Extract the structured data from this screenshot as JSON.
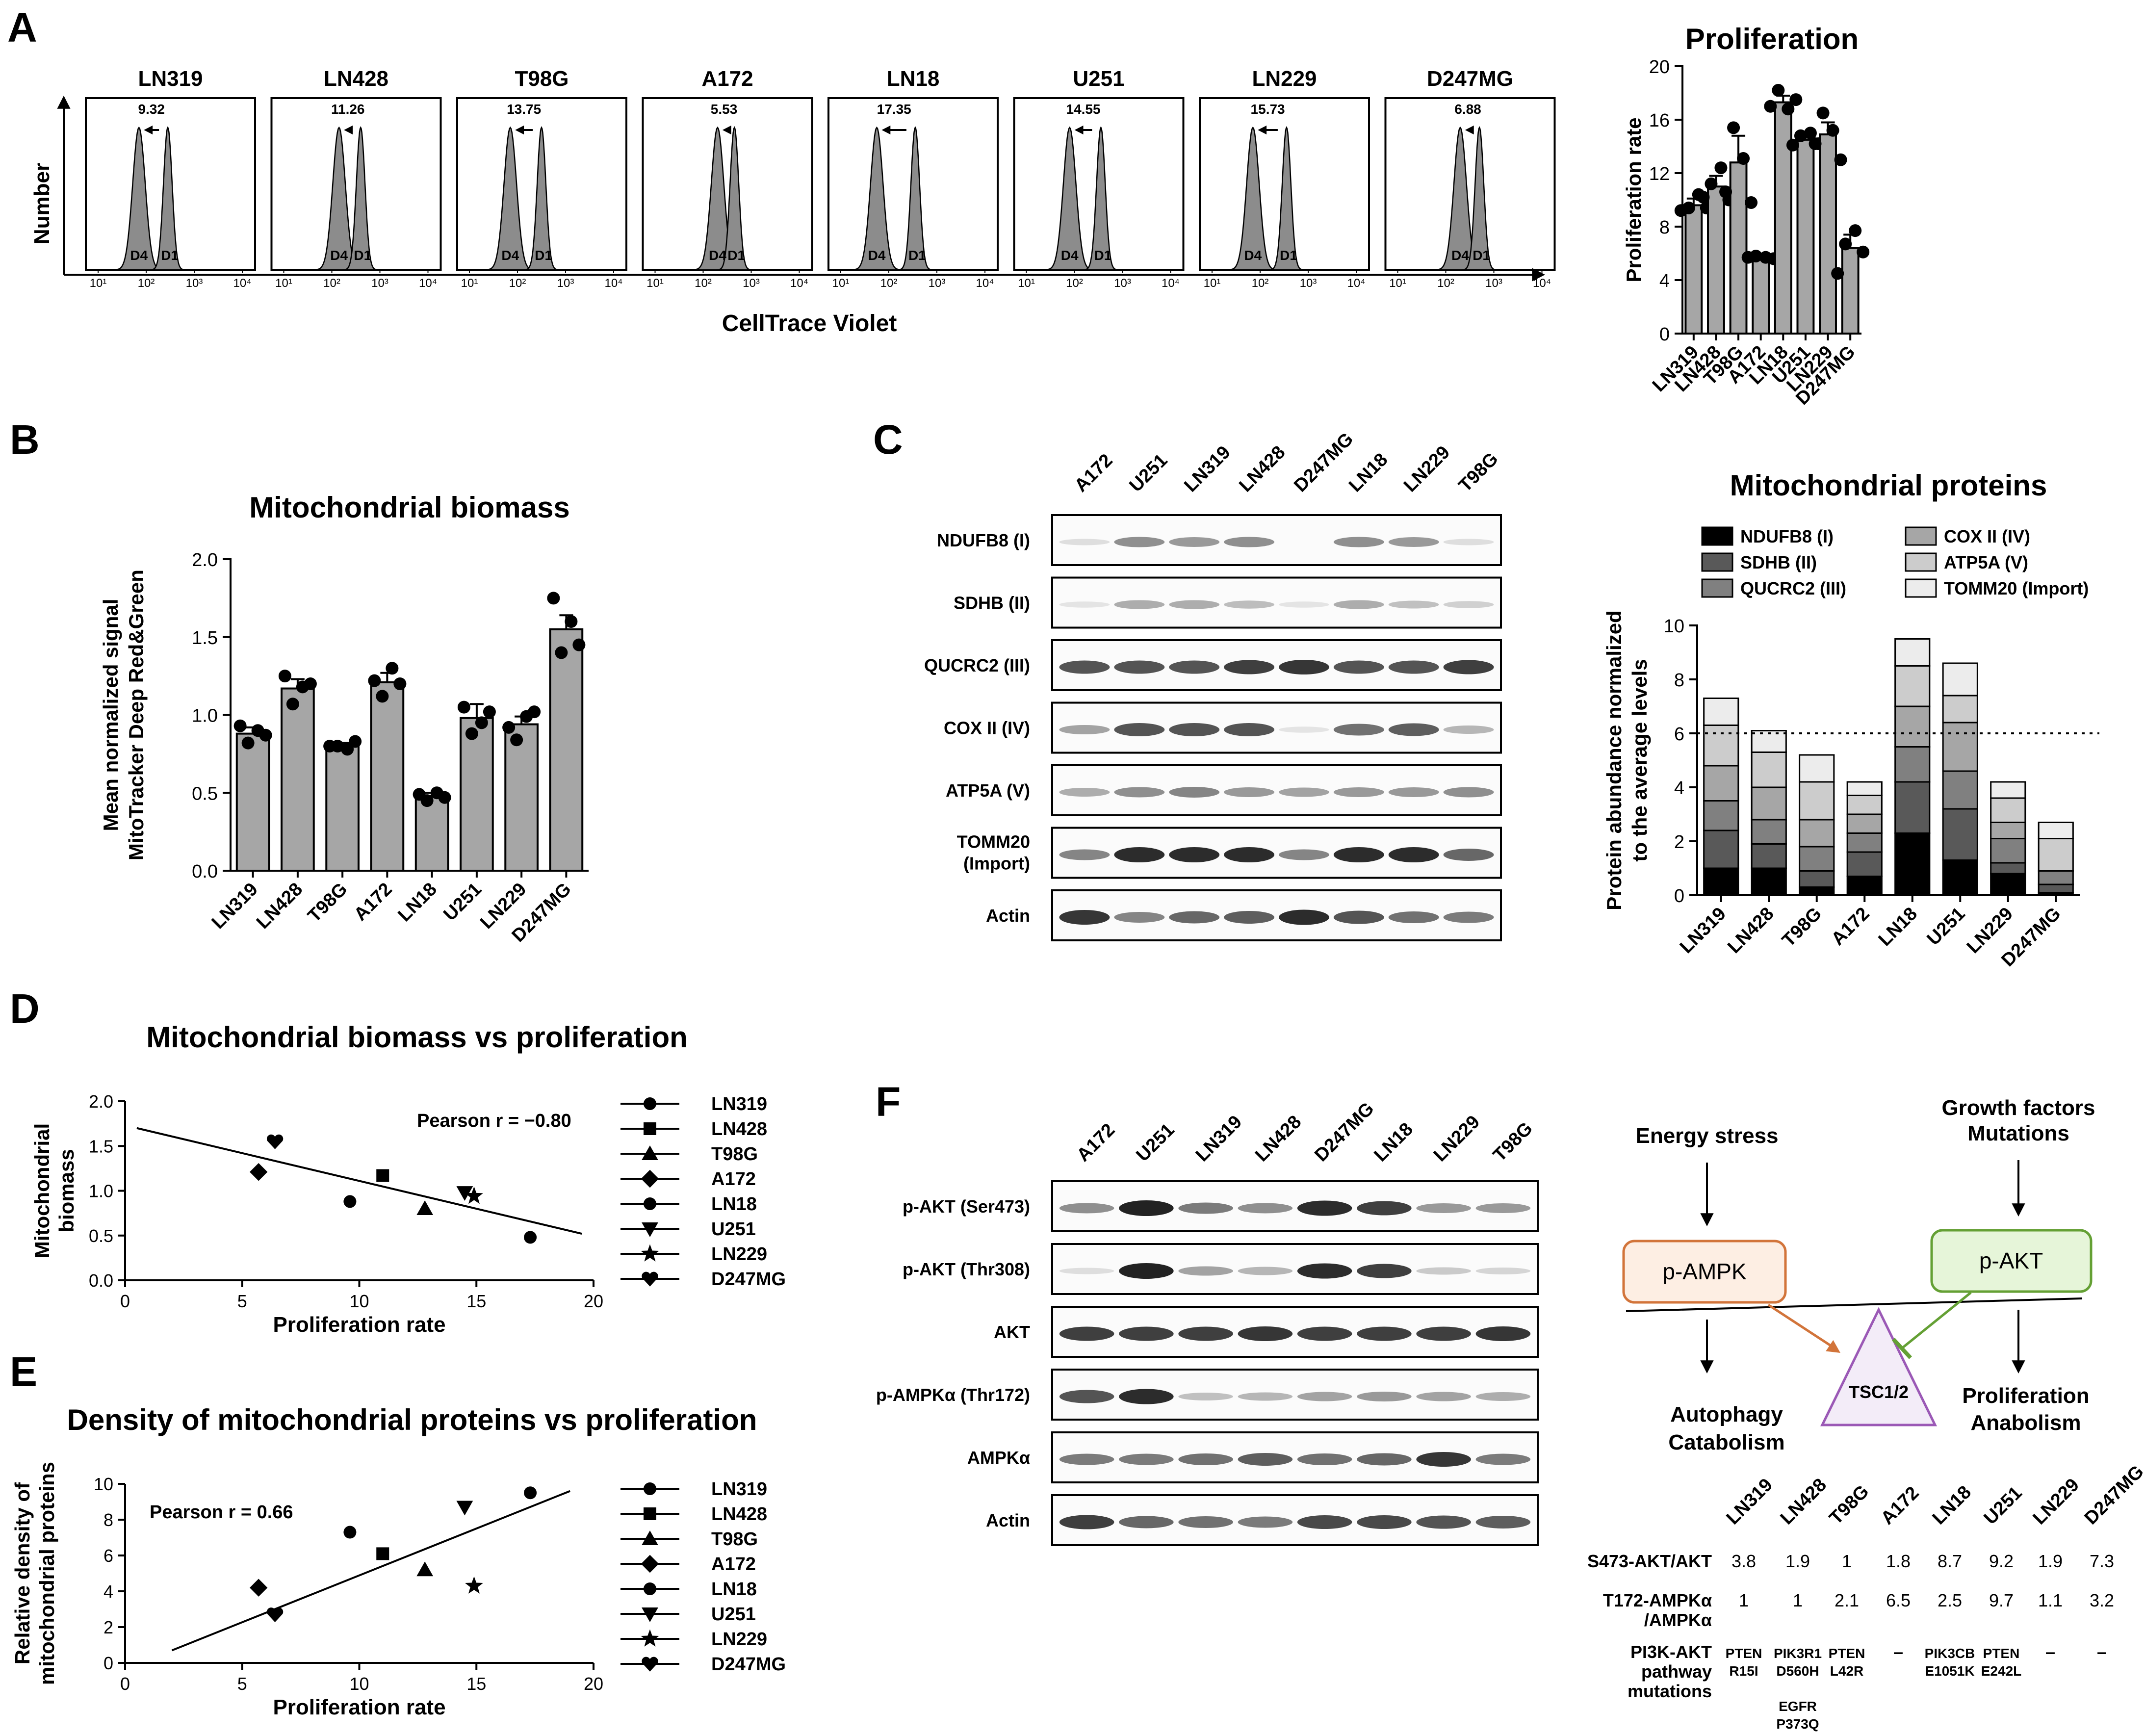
{
  "panel_letters": {
    "a": "A",
    "b": "B",
    "c": "C",
    "d": "D",
    "e": "E",
    "f": "F"
  },
  "colors": {
    "bar": "#a6a6a6",
    "hist": "#8c8c8c",
    "ampk_box": "#fdeee3",
    "ampk_border": "#d2743a",
    "akt_box": "#e6f5d9",
    "akt_border": "#64a034",
    "tsc": "#9b59b6",
    "arrow_ampk": "#d2743a",
    "arrow_akt": "#64a034"
  },
  "flow_histograms": {
    "ylabel": "Number",
    "xlabel": "CellTrace Violet",
    "tick_labels": [
      "10¹",
      "10²",
      "10³",
      "10⁴"
    ],
    "peak_labels": [
      "D4",
      "D1"
    ],
    "panels": [
      {
        "name": "LN319",
        "value": "9.32",
        "d4": 1.85,
        "d1": 2.45
      },
      {
        "name": "LN428",
        "value": "11.26",
        "d4": 2.15,
        "d1": 2.6
      },
      {
        "name": "T98G",
        "value": "13.75",
        "d4": 1.85,
        "d1": 2.5
      },
      {
        "name": "A172",
        "value": "5.53",
        "d4": 2.3,
        "d1": 2.65
      },
      {
        "name": "LN18",
        "value": "17.35",
        "d4": 1.75,
        "d1": 2.55
      },
      {
        "name": "U251",
        "value": "14.55",
        "d4": 1.9,
        "d1": 2.55
      },
      {
        "name": "LN229",
        "value": "15.73",
        "d4": 1.85,
        "d1": 2.55
      },
      {
        "name": "D247MG",
        "value": "6.88",
        "d4": 2.3,
        "d1": 2.7
      }
    ]
  },
  "chart_data": [
    {
      "id": "proliferation",
      "type": "bar",
      "title": "Proliferation",
      "ylabel": "Proliferation rate",
      "ylim": [
        0,
        20
      ],
      "yticks": [
        0,
        4,
        8,
        12,
        16,
        20
      ],
      "categories": [
        "LN319",
        "LN428",
        "T98G",
        "A172",
        "LN18",
        "U251",
        "LN229",
        "D247MG"
      ],
      "values": [
        9.6,
        11.0,
        12.8,
        5.7,
        17.3,
        14.5,
        14.9,
        6.4
      ],
      "errors": [
        0.5,
        0.8,
        2.0,
        0.1,
        0.5,
        0.3,
        0.9,
        1.0
      ],
      "points": [
        [
          9.2,
          9.4,
          10.4,
          9.4
        ],
        [
          10.2,
          11.2,
          12.4,
          10.0
        ],
        [
          10.6,
          15.4,
          13.1,
          9.8
        ],
        [
          5.7,
          5.8,
          5.7,
          5.6
        ],
        [
          17.0,
          18.2,
          16.8,
          17.5
        ],
        [
          14.1,
          14.8,
          15.0,
          14.2
        ],
        [
          14.2,
          16.5,
          15.2,
          13.0
        ],
        [
          4.5,
          6.7,
          7.7,
          6.1
        ]
      ]
    },
    {
      "id": "mito_biomass",
      "type": "bar",
      "title": "Mitochondrial biomass",
      "ylabel": [
        "Mean normalized signal",
        "MitoTracker Deep Red&Green"
      ],
      "ylim": [
        0,
        2.0
      ],
      "yticks": [
        0,
        0.5,
        1.0,
        1.5,
        2.0
      ],
      "ytick_labels": [
        "0.0",
        "0.5",
        "1.0",
        "1.5",
        "2.0"
      ],
      "categories": [
        "LN319",
        "LN428",
        "T98G",
        "A172",
        "LN18",
        "U251",
        "LN229",
        "D247MG"
      ],
      "values": [
        0.88,
        1.17,
        0.8,
        1.21,
        0.48,
        0.98,
        0.94,
        1.55
      ],
      "errors": [
        0.04,
        0.06,
        0.02,
        0.06,
        0.02,
        0.09,
        0.05,
        0.09
      ],
      "points": [
        [
          0.93,
          0.82,
          0.9,
          0.87
        ],
        [
          1.25,
          1.07,
          1.18,
          1.2
        ],
        [
          0.8,
          0.8,
          0.78,
          0.83
        ],
        [
          1.22,
          1.12,
          1.3,
          1.2
        ],
        [
          0.49,
          0.45,
          0.5,
          0.47
        ],
        [
          1.05,
          0.88,
          0.95,
          1.02
        ],
        [
          0.92,
          0.84,
          0.99,
          1.02
        ],
        [
          1.75,
          1.4,
          1.6,
          1.45
        ]
      ]
    },
    {
      "id": "mito_proteins",
      "type": "bar",
      "stacked": true,
      "title": "Mitochondrial proteins",
      "ylabel": [
        "Protein abundance normalized",
        "to the average levels"
      ],
      "ylim": [
        0,
        10
      ],
      "yticks": [
        0,
        2,
        4,
        6,
        8,
        10
      ],
      "reference_line": 6,
      "categories": [
        "LN319",
        "LN428",
        "T98G",
        "A172",
        "LN18",
        "U251",
        "LN229",
        "D247MG"
      ],
      "series": [
        {
          "name": "NDUFB8 (I)",
          "color": "#000000",
          "values": [
            1.0,
            1.0,
            0.3,
            0.7,
            2.3,
            1.3,
            0.8,
            0.1
          ]
        },
        {
          "name": "SDHB (II)",
          "color": "#595959",
          "values": [
            1.4,
            0.9,
            0.6,
            0.9,
            1.9,
            1.9,
            0.4,
            0.3
          ]
        },
        {
          "name": "QUCRC2 (III)",
          "color": "#808080",
          "values": [
            1.1,
            0.9,
            0.9,
            0.7,
            1.3,
            1.4,
            0.9,
            0.5
          ]
        },
        {
          "name": "COX II (IV)",
          "color": "#a6a6a6",
          "values": [
            1.3,
            1.2,
            1.0,
            0.7,
            1.5,
            1.8,
            0.6,
            0.0
          ]
        },
        {
          "name": "ATP5A (V)",
          "color": "#cccccc",
          "values": [
            1.5,
            1.3,
            1.4,
            0.7,
            1.5,
            1.0,
            0.9,
            1.2
          ]
        },
        {
          "name": "TOMM20 (Import)",
          "color": "#ececec",
          "values": [
            1.0,
            0.8,
            1.0,
            0.5,
            1.0,
            1.2,
            0.6,
            0.6
          ]
        }
      ]
    },
    {
      "id": "biomass_vs_prolif",
      "type": "scatter",
      "title": "Mitochondrial biomass vs proliferation",
      "xlabel": "Proliferation rate",
      "ylabel": [
        "Mitochondrial",
        "biomass"
      ],
      "xlim": [
        0,
        20
      ],
      "ylim": [
        0,
        2.0
      ],
      "xticks": [
        0,
        5,
        10,
        15,
        20
      ],
      "yticks": [
        0,
        0.5,
        1.0,
        1.5,
        2.0
      ],
      "ytick_labels": [
        "0.0",
        "0.5",
        "1.0",
        "1.5",
        "2.0"
      ],
      "annotation": "Pearson r =  −0.80",
      "fit_line": {
        "x": [
          0.5,
          19.5
        ],
        "y": [
          1.7,
          0.52
        ]
      },
      "points": [
        {
          "name": "LN319",
          "marker": "circle",
          "x": 9.6,
          "y": 0.88
        },
        {
          "name": "LN428",
          "marker": "square",
          "x": 11.0,
          "y": 1.17
        },
        {
          "name": "T98G",
          "marker": "triangle",
          "x": 12.8,
          "y": 0.8
        },
        {
          "name": "A172",
          "marker": "diamond",
          "x": 5.7,
          "y": 1.21
        },
        {
          "name": "LN18",
          "marker": "circle",
          "x": 17.3,
          "y": 0.48
        },
        {
          "name": "U251",
          "marker": "triangle-down",
          "x": 14.5,
          "y": 0.98
        },
        {
          "name": "LN229",
          "marker": "star",
          "x": 14.9,
          "y": 0.94
        },
        {
          "name": "D247MG",
          "marker": "heart",
          "x": 6.4,
          "y": 1.55
        }
      ]
    },
    {
      "id": "density_vs_prolif",
      "type": "scatter",
      "title": "Density of mitochondrial proteins vs proliferation",
      "xlabel": "Proliferation rate",
      "ylabel": [
        "Relative density of",
        "mitochondrial proteins"
      ],
      "xlim": [
        0,
        20
      ],
      "ylim": [
        0,
        10
      ],
      "xticks": [
        0,
        5,
        10,
        15,
        20
      ],
      "yticks": [
        0,
        2,
        4,
        6,
        8,
        10
      ],
      "annotation": "Pearson r = 0.66",
      "fit_line": {
        "x": [
          2.0,
          19.0
        ],
        "y": [
          0.7,
          9.6
        ]
      },
      "points": [
        {
          "name": "LN319",
          "marker": "circle",
          "x": 9.6,
          "y": 7.3
        },
        {
          "name": "LN428",
          "marker": "square",
          "x": 11.0,
          "y": 6.1
        },
        {
          "name": "T98G",
          "marker": "triangle",
          "x": 12.8,
          "y": 5.2
        },
        {
          "name": "A172",
          "marker": "diamond",
          "x": 5.7,
          "y": 4.2
        },
        {
          "name": "LN18",
          "marker": "circle",
          "x": 17.3,
          "y": 9.5
        },
        {
          "name": "U251",
          "marker": "triangle-down",
          "x": 14.5,
          "y": 8.7
        },
        {
          "name": "LN229",
          "marker": "star",
          "x": 14.9,
          "y": 4.3
        },
        {
          "name": "D247MG",
          "marker": "heart",
          "x": 6.4,
          "y": 2.7
        }
      ]
    }
  ],
  "blot_c": {
    "lanes": [
      "A172",
      "U251",
      "LN319",
      "LN428",
      "D247MG",
      "LN18",
      "LN229",
      "T98G"
    ],
    "rows": [
      {
        "label": "NDUFB8 (I)",
        "intensity": [
          0.05,
          0.45,
          0.4,
          0.45,
          0.0,
          0.45,
          0.4,
          0.05
        ]
      },
      {
        "label": "SDHB (II)",
        "intensity": [
          0.02,
          0.3,
          0.3,
          0.22,
          0.02,
          0.3,
          0.2,
          0.12
        ]
      },
      {
        "label": "QUCRC2 (III)",
        "intensity": [
          0.75,
          0.75,
          0.75,
          0.85,
          0.9,
          0.75,
          0.75,
          0.85
        ]
      },
      {
        "label": "COX II (IV)",
        "intensity": [
          0.35,
          0.75,
          0.75,
          0.75,
          0.02,
          0.6,
          0.7,
          0.25
        ]
      },
      {
        "label": "ATP5A (V)",
        "intensity": [
          0.3,
          0.45,
          0.5,
          0.4,
          0.35,
          0.4,
          0.4,
          0.45
        ]
      },
      {
        "label": [
          "TOMM20",
          "(Import)"
        ],
        "intensity": [
          0.5,
          0.95,
          0.95,
          0.95,
          0.5,
          0.95,
          0.95,
          0.65
        ]
      },
      {
        "label": "Actin",
        "intensity": [
          0.9,
          0.5,
          0.65,
          0.7,
          0.95,
          0.75,
          0.6,
          0.55
        ]
      }
    ]
  },
  "blot_f": {
    "lanes": [
      "A172",
      "U251",
      "LN319",
      "LN428",
      "D247MG",
      "LN18",
      "LN229",
      "T98G"
    ],
    "rows": [
      {
        "label": "p-AKT (Ser473)",
        "intensity": [
          0.45,
          1.0,
          0.55,
          0.45,
          0.95,
          0.85,
          0.4,
          0.4
        ]
      },
      {
        "label": "p-AKT (Thr308)",
        "intensity": [
          0.05,
          1.0,
          0.35,
          0.25,
          0.95,
          0.85,
          0.15,
          0.1
        ]
      },
      {
        "label": "AKT",
        "intensity": [
          0.85,
          0.85,
          0.85,
          0.9,
          0.85,
          0.85,
          0.85,
          0.9
        ]
      },
      {
        "label": "p-AMPKα (Thr172)",
        "intensity": [
          0.75,
          0.95,
          0.2,
          0.25,
          0.35,
          0.4,
          0.35,
          0.3
        ]
      },
      {
        "label": "AMPKα",
        "intensity": [
          0.55,
          0.55,
          0.6,
          0.7,
          0.6,
          0.65,
          0.9,
          0.55
        ]
      },
      {
        "label": "Actin",
        "intensity": [
          0.85,
          0.65,
          0.6,
          0.55,
          0.8,
          0.8,
          0.75,
          0.7
        ]
      }
    ]
  },
  "pathway": {
    "energy_stress": "Energy stress",
    "growth_factors": [
      "Growth factors",
      "Mutations"
    ],
    "p_ampk": "p-AMPK",
    "p_akt": "p-AKT",
    "tsc": "TSC1/2",
    "autophagy": [
      "Autophagy",
      "Catabolism"
    ],
    "proliferation": [
      "Proliferation",
      "Anabolism"
    ]
  },
  "mutation_table": {
    "columns": [
      "LN319",
      "LN428",
      "T98G",
      "A172",
      "LN18",
      "U251",
      "LN229",
      "D247MG"
    ],
    "rows": [
      {
        "label": [
          "S473-AKT/AKT"
        ],
        "cells": [
          [
            "3.8"
          ],
          [
            "1.9"
          ],
          [
            "1"
          ],
          [
            "1.8"
          ],
          [
            "8.7"
          ],
          [
            "9.2"
          ],
          [
            "1.9"
          ],
          [
            "7.3"
          ]
        ]
      },
      {
        "label": [
          "T172-AMPKα",
          "/AMPKα"
        ],
        "cells": [
          [
            "1"
          ],
          [
            "1"
          ],
          [
            "2.1"
          ],
          [
            "6.5"
          ],
          [
            "2.5"
          ],
          [
            "9.7"
          ],
          [
            "1.1"
          ],
          [
            "3.2"
          ]
        ]
      },
      {
        "label": [
          "PI3K-AKT",
          "pathway",
          "mutations"
        ],
        "cells": [
          [
            "PTEN",
            "R15I"
          ],
          [
            "PIK3R1",
            "D560H",
            "",
            "EGFR",
            "P373Q"
          ],
          [
            "PTEN",
            "L42R"
          ],
          [
            "–"
          ],
          [
            "PIK3CB",
            "E1051K"
          ],
          [
            "PTEN",
            "E242L"
          ],
          [
            "–"
          ],
          [
            "–"
          ]
        ]
      }
    ]
  }
}
